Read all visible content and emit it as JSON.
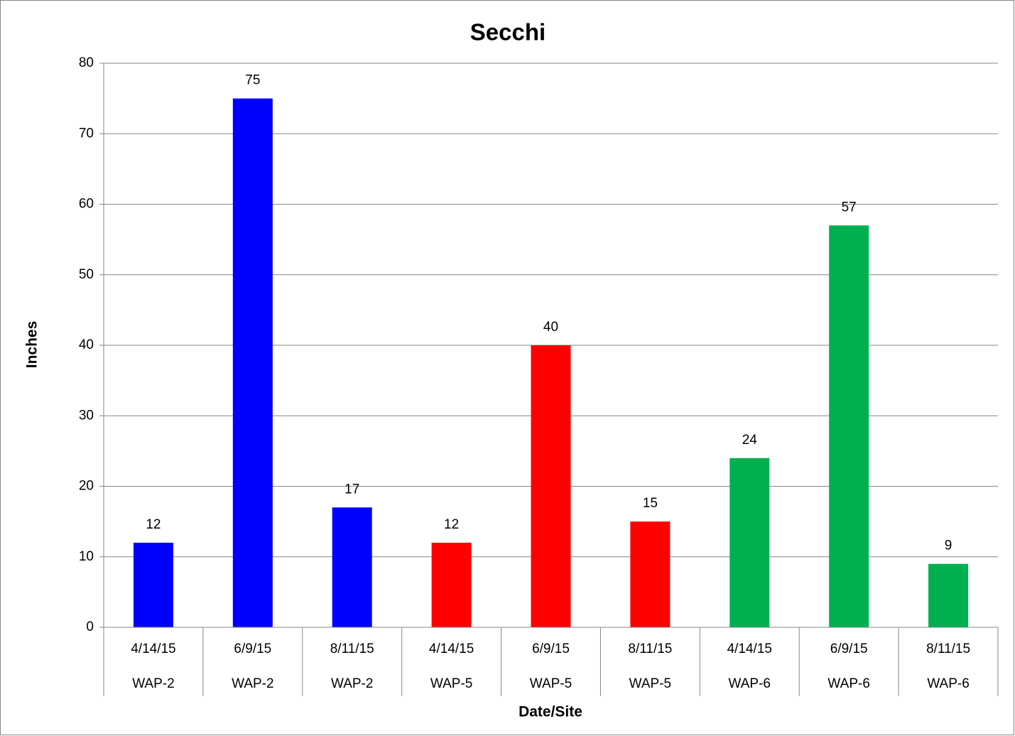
{
  "chart_data": {
    "type": "bar",
    "title": "Secchi",
    "x_label": "Date/Site",
    "y_label": "Inches",
    "categories": [
      "4/14/15",
      "6/9/15",
      "8/11/15",
      "4/14/15",
      "6/9/15",
      "8/11/15",
      "4/14/15",
      "6/9/15",
      "8/11/15"
    ],
    "sites": [
      "WAP-2",
      "WAP-2",
      "WAP-2",
      "WAP-5",
      "WAP-5",
      "WAP-5",
      "WAP-6",
      "WAP-6",
      "WAP-6"
    ],
    "values": [
      12,
      75,
      17,
      12,
      40,
      15,
      24,
      57,
      9
    ],
    "colors": [
      "#0000ff",
      "#0000ff",
      "#0000ff",
      "#ff0000",
      "#ff0000",
      "#ff0000",
      "#00b050",
      "#00b050",
      "#00b050"
    ],
    "ylim": [
      0,
      80
    ],
    "yticks": [
      0,
      10,
      20,
      30,
      40,
      50,
      60,
      70,
      80
    ],
    "grid": true
  }
}
